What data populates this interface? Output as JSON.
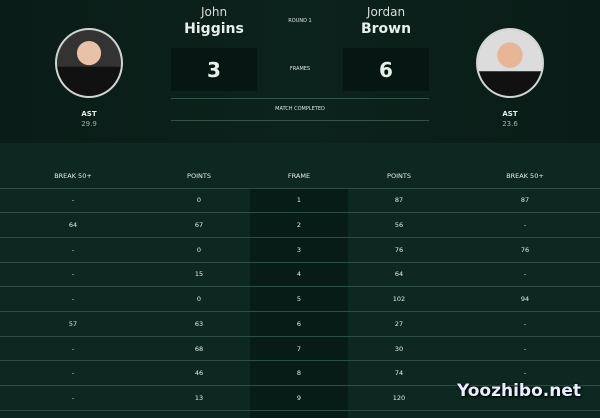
{
  "match": {
    "round": "ROUND 1",
    "frames_label": "FRAMES",
    "status": "MATCH COMPLETED"
  },
  "player1": {
    "first_name": "John",
    "last_name": "Higgins",
    "score": "3",
    "ast_label": "AST",
    "ast_value": "29.9"
  },
  "player2": {
    "first_name": "Jordan",
    "last_name": "Brown",
    "score": "6",
    "ast_label": "AST",
    "ast_value": "23.6"
  },
  "table": {
    "headers": [
      "BREAK 50+",
      "POINTS",
      "FRAME",
      "POINTS",
      "BREAK 50+"
    ],
    "rows": [
      [
        "-",
        "0",
        "1",
        "87",
        "87"
      ],
      [
        "64",
        "67",
        "2",
        "56",
        "-"
      ],
      [
        "-",
        "0",
        "3",
        "76",
        "76"
      ],
      [
        "-",
        "15",
        "4",
        "64",
        "-"
      ],
      [
        "-",
        "0",
        "5",
        "102",
        "94"
      ],
      [
        "57",
        "63",
        "6",
        "27",
        "-"
      ],
      [
        "-",
        "68",
        "7",
        "30",
        "-"
      ],
      [
        "-",
        "46",
        "8",
        "74",
        "-"
      ],
      [
        "-",
        "13",
        "9",
        "120",
        ""
      ]
    ]
  },
  "watermark": "Yoozhibo.net"
}
